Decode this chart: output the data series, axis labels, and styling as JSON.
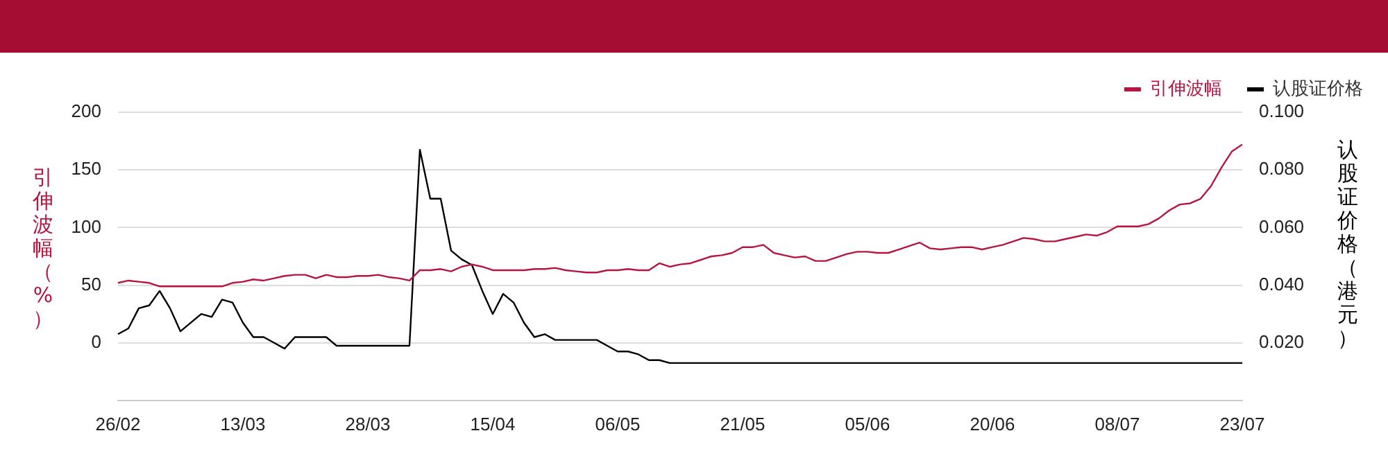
{
  "chart_data": {
    "type": "line",
    "ylabel": "引伸波幅（%）",
    "y2label": "认股证价格（港元）",
    "categories": [
      "26/02",
      null,
      null,
      null,
      null,
      null,
      null,
      null,
      null,
      null,
      null,
      null,
      "13/03",
      null,
      null,
      null,
      null,
      null,
      null,
      null,
      null,
      null,
      null,
      null,
      "28/03",
      null,
      null,
      null,
      null,
      null,
      null,
      null,
      null,
      null,
      null,
      null,
      "15/04",
      null,
      null,
      null,
      null,
      null,
      null,
      null,
      null,
      null,
      null,
      null,
      "06/05",
      null,
      null,
      null,
      null,
      null,
      null,
      null,
      null,
      null,
      null,
      null,
      "21/05",
      null,
      null,
      null,
      null,
      null,
      null,
      null,
      null,
      null,
      null,
      null,
      "05/06",
      null,
      null,
      null,
      null,
      null,
      null,
      null,
      null,
      null,
      null,
      null,
      "20/06",
      null,
      null,
      null,
      null,
      null,
      null,
      null,
      null,
      null,
      null,
      null,
      "08/07",
      null,
      null,
      null,
      null,
      null,
      null,
      null,
      null,
      null,
      null,
      null,
      "23/07"
    ],
    "series": [
      {
        "name": "引伸波幅",
        "color": "#b5163f",
        "values": [
          52,
          54,
          53,
          52,
          49,
          49,
          49,
          49,
          49,
          49,
          49,
          52,
          53,
          55,
          54,
          56,
          58,
          59,
          59,
          56,
          59,
          57,
          57,
          58,
          58,
          59,
          57,
          56,
          54,
          63,
          63,
          64,
          62,
          66,
          68,
          66,
          63,
          63,
          63,
          63,
          64,
          64,
          65,
          63,
          62,
          61,
          61,
          63,
          63,
          64,
          63,
          63,
          69,
          66,
          68,
          69,
          72,
          75,
          76,
          78,
          83,
          83,
          85,
          78,
          76,
          74,
          75,
          71,
          71,
          74,
          77,
          79,
          79,
          78,
          78,
          81,
          84,
          87,
          82,
          81,
          82,
          83,
          83,
          81,
          83,
          85,
          88,
          91,
          90,
          88,
          88,
          90,
          92,
          94,
          93,
          96,
          101,
          101,
          101,
          103,
          108,
          115,
          120,
          121,
          125,
          136,
          152,
          166,
          172
        ]
      },
      {
        "name": "认股证价格",
        "color": "#000000",
        "axis": "y2",
        "values": [
          0.023,
          0.025,
          0.032,
          0.033,
          0.038,
          0.032,
          0.024,
          0.027,
          0.03,
          0.029,
          0.035,
          0.034,
          0.027,
          0.022,
          0.022,
          0.02,
          0.018,
          0.022,
          0.022,
          0.022,
          0.022,
          0.019,
          0.019,
          0.019,
          0.019,
          0.019,
          0.019,
          0.019,
          0.019,
          0.087,
          0.07,
          0.07,
          0.052,
          0.049,
          0.047,
          0.038,
          0.03,
          0.037,
          0.034,
          0.027,
          0.022,
          0.023,
          0.021,
          0.021,
          0.021,
          0.021,
          0.021,
          0.019,
          0.017,
          0.017,
          0.016,
          0.014,
          0.014,
          0.013,
          0.013,
          0.013,
          0.013,
          0.013,
          0.013,
          0.013,
          0.013,
          0.013,
          0.013,
          0.013,
          0.013,
          0.013,
          0.013,
          0.013,
          0.013,
          0.013,
          0.013,
          0.013,
          0.013,
          0.013,
          0.013,
          0.013,
          0.013,
          0.013,
          0.013,
          0.013,
          0.013,
          0.013,
          0.013,
          0.013,
          0.013,
          0.013,
          0.013,
          0.013,
          0.013,
          0.013,
          0.013,
          0.013,
          0.013,
          0.013,
          0.013,
          0.013,
          0.013,
          0.013,
          0.013,
          0.013,
          0.013,
          0.013,
          0.013,
          0.013,
          0.013,
          0.013,
          0.013,
          0.013,
          0.013
        ]
      }
    ],
    "ylim": [
      -50,
      200
    ],
    "yticks": [
      0,
      50,
      100,
      150,
      200
    ],
    "y2lim": [
      0,
      0.1
    ],
    "y2ticks": [
      {
        "value": 0.02,
        "label": "0.020"
      },
      {
        "value": 0.04,
        "label": "0.040"
      },
      {
        "value": 0.06,
        "label": "0.060"
      },
      {
        "value": 0.08,
        "label": "0.080"
      },
      {
        "value": 0.1,
        "label": "0.100"
      }
    ],
    "grid": "y",
    "legend": "top right",
    "marker": "none",
    "line_style": "solid"
  }
}
